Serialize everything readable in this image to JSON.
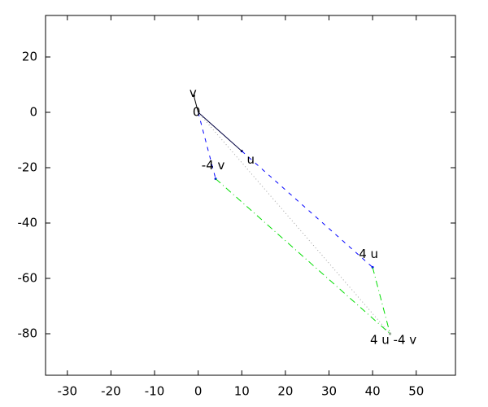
{
  "chart_data": {
    "type": "vector",
    "xlim": [
      -35,
      59
    ],
    "ylim": [
      -95,
      35
    ],
    "xticks": [
      -30,
      -20,
      -10,
      0,
      10,
      20,
      30,
      40,
      50
    ],
    "yticks": [
      -80,
      -60,
      -40,
      -20,
      0,
      20
    ],
    "segments": [
      {
        "x": [
          0,
          10
        ],
        "y": [
          0,
          -14
        ],
        "color": "#000040",
        "dash": "solid"
      },
      {
        "x": [
          0,
          -1
        ],
        "y": [
          0,
          6
        ],
        "color": "#000000",
        "dash": "solid"
      },
      {
        "x": [
          0,
          4
        ],
        "y": [
          0,
          -24
        ],
        "color": "#0000ff",
        "dash": "dashed"
      },
      {
        "x": [
          10,
          40
        ],
        "y": [
          -14,
          -56
        ],
        "color": "#0000ff",
        "dash": "dashed"
      },
      {
        "x": [
          4,
          44
        ],
        "y": [
          -24,
          -80
        ],
        "color": "#00dd00",
        "dash": "dotdash"
      },
      {
        "x": [
          40,
          44
        ],
        "y": [
          -56,
          -80
        ],
        "color": "#00dd00",
        "dash": "dotdash"
      },
      {
        "x": [
          0,
          44
        ],
        "y": [
          0,
          -80
        ],
        "color": "#a0a0a0",
        "dash": "dotted"
      }
    ],
    "points": [
      {
        "label": "v",
        "x": -1,
        "y": 6
      },
      {
        "label": "0",
        "x": 0,
        "y": 0
      },
      {
        "label": "u",
        "x": 10,
        "y": -14
      },
      {
        "label": "-4 v",
        "x": 4,
        "y": -24
      },
      {
        "label": "4 u",
        "x": 40,
        "y": -56
      },
      {
        "label": "4 u -4 v",
        "x": 44,
        "y": -80
      }
    ]
  }
}
